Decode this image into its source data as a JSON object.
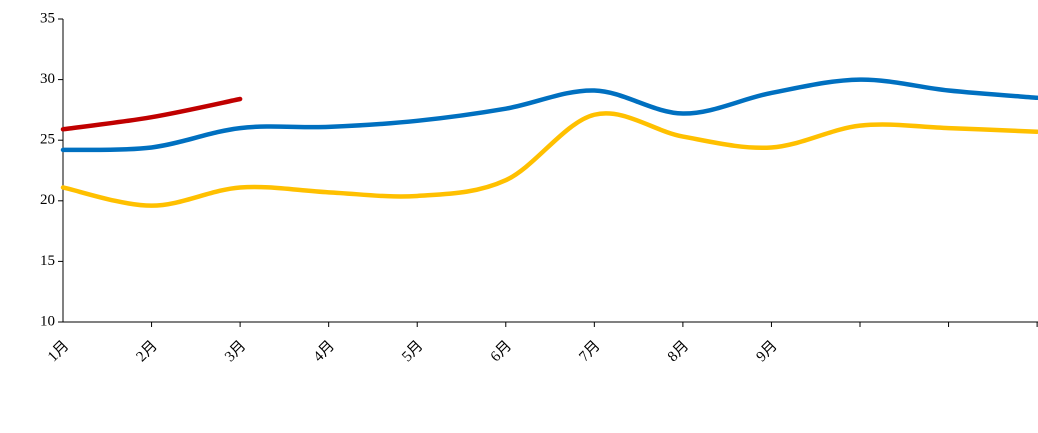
{
  "chart_data": {
    "type": "line",
    "categories": [
      "1月",
      "2月",
      "3月",
      "4月",
      "5月",
      "6月",
      "7月",
      "8月",
      "9月",
      null,
      null,
      null
    ],
    "series": [
      {
        "color": "#0070c0",
        "values": [
          24.2,
          24.4,
          26.0,
          26.1,
          26.6,
          27.6,
          29.1,
          27.2,
          28.9,
          30.0,
          29.1,
          28.5
        ]
      },
      {
        "color": "#ffc000",
        "values": [
          21.1,
          19.6,
          21.1,
          20.7,
          20.4,
          21.7,
          27.1,
          25.3,
          24.4,
          26.2,
          26.0,
          25.7
        ]
      },
      {
        "color": "#c00000",
        "values": [
          25.9,
          26.9,
          28.4,
          null,
          null,
          null,
          null,
          null,
          null,
          null,
          null,
          null
        ]
      }
    ],
    "ylim": [
      10,
      35
    ],
    "yticks": [
      10,
      15,
      20,
      25,
      30,
      35
    ],
    "smooth": true
  }
}
